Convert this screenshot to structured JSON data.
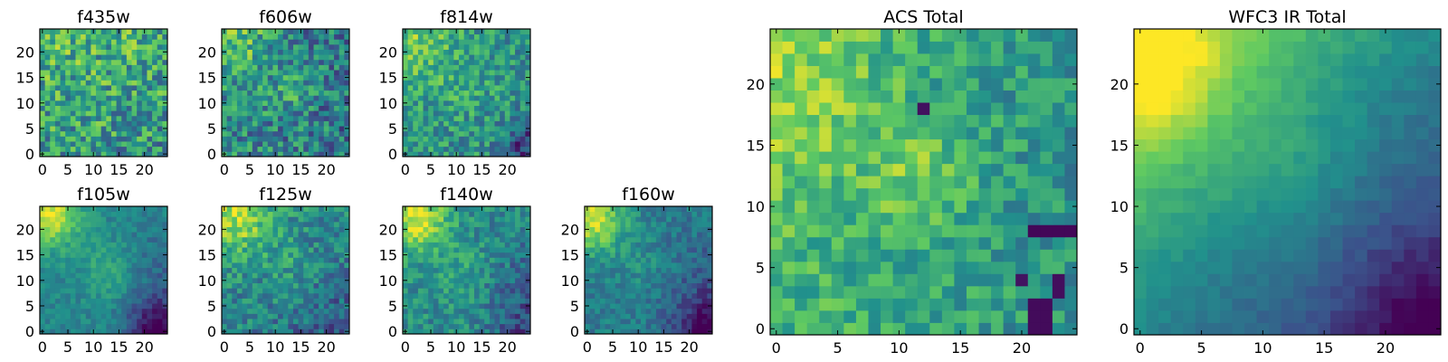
{
  "chart_data": [
    {
      "type": "heatmap",
      "title": "f435w",
      "grid_size": 25,
      "xlim": [
        -0.5,
        24.5
      ],
      "ylim": [
        -0.5,
        24.5
      ],
      "xticks": [
        0,
        5,
        10,
        15,
        20
      ],
      "yticks": [
        0,
        5,
        10,
        15,
        20
      ],
      "grid": false,
      "legend": "none",
      "colormap": "viridis",
      "pattern": "noisy, moderately uniform",
      "colormap_stops": [
        "#440154",
        "#3b528b",
        "#21918c",
        "#5ec962",
        "#fde725"
      ]
    },
    {
      "type": "heatmap",
      "title": "f606w",
      "grid_size": 25,
      "xlim": [
        -0.5,
        24.5
      ],
      "ylim": [
        -0.5,
        24.5
      ],
      "xticks": [
        0,
        5,
        10,
        15,
        20
      ],
      "yticks": [
        0,
        5,
        10,
        15,
        20
      ],
      "grid": false,
      "legend": "none",
      "colormap": "viridis",
      "pattern": "bright upper-left and center, noisy",
      "colormap_stops": [
        "#440154",
        "#3b528b",
        "#21918c",
        "#5ec962",
        "#fde725"
      ]
    },
    {
      "type": "heatmap",
      "title": "f814w",
      "grid_size": 25,
      "xlim": [
        -0.5,
        24.5
      ],
      "ylim": [
        -0.5,
        24.5
      ],
      "xticks": [
        0,
        5,
        10,
        15,
        20
      ],
      "yticks": [
        0,
        5,
        10,
        15,
        20
      ],
      "grid": false,
      "legend": "none",
      "colormap": "viridis",
      "pattern": "bright upper-left, dark lower-right corner",
      "colormap_stops": [
        "#440154",
        "#3b528b",
        "#21918c",
        "#5ec962",
        "#fde725"
      ]
    },
    {
      "type": "heatmap",
      "title": "f105w",
      "grid_size": 25,
      "xlim": [
        -0.5,
        24.5
      ],
      "ylim": [
        -0.5,
        24.5
      ],
      "xticks": [
        0,
        5,
        10,
        15,
        20
      ],
      "yticks": [
        0,
        5,
        10,
        15,
        20
      ],
      "grid": false,
      "legend": "none",
      "colormap": "viridis",
      "pattern": "yellow upper-left, dark bottom-right",
      "colormap_stops": [
        "#440154",
        "#3b528b",
        "#21918c",
        "#5ec962",
        "#fde725"
      ]
    },
    {
      "type": "heatmap",
      "title": "f125w",
      "grid_size": 25,
      "xlim": [
        -0.5,
        24.5
      ],
      "ylim": [
        -0.5,
        24.5
      ],
      "xticks": [
        0,
        5,
        10,
        15,
        20
      ],
      "yticks": [
        0,
        5,
        10,
        15,
        20
      ],
      "grid": false,
      "legend": "none",
      "colormap": "viridis",
      "pattern": "yellow upper-left, noisy",
      "colormap_stops": [
        "#440154",
        "#3b528b",
        "#21918c",
        "#5ec962",
        "#fde725"
      ]
    },
    {
      "type": "heatmap",
      "title": "f140w",
      "grid_size": 25,
      "xlim": [
        -0.5,
        24.5
      ],
      "ylim": [
        -0.5,
        24.5
      ],
      "xticks": [
        0,
        5,
        10,
        15,
        20
      ],
      "yticks": [
        0,
        5,
        10,
        15,
        20
      ],
      "grid": false,
      "legend": "none",
      "colormap": "viridis",
      "pattern": "yellow upper-left, dark bottom-right",
      "colormap_stops": [
        "#440154",
        "#3b528b",
        "#21918c",
        "#5ec962",
        "#fde725"
      ]
    },
    {
      "type": "heatmap",
      "title": "f160w",
      "grid_size": 25,
      "xlim": [
        -0.5,
        24.5
      ],
      "ylim": [
        -0.5,
        24.5
      ],
      "xticks": [
        0,
        5,
        10,
        15,
        20
      ],
      "yticks": [
        0,
        5,
        10,
        15,
        20
      ],
      "grid": false,
      "legend": "none",
      "colormap": "viridis",
      "pattern": "yellow upper-left, dark bottom-right",
      "colormap_stops": [
        "#440154",
        "#3b528b",
        "#21918c",
        "#5ec962",
        "#fde725"
      ]
    },
    {
      "type": "heatmap",
      "title": "ACS Total",
      "grid_size": 25,
      "xlim": [
        -0.5,
        24.5
      ],
      "ylim": [
        -0.5,
        24.5
      ],
      "xticks": [
        0,
        5,
        10,
        15,
        20
      ],
      "yticks": [
        0,
        5,
        10,
        15,
        20
      ],
      "grid": false,
      "legend": "none",
      "colormap": "viridis",
      "pattern": "bright left and center, dark blocks lower-right",
      "colormap_stops": [
        "#440154",
        "#3b528b",
        "#21918c",
        "#5ec962",
        "#fde725"
      ]
    },
    {
      "type": "heatmap",
      "title": "WFC3 IR Total",
      "grid_size": 25,
      "xlim": [
        -0.5,
        24.5
      ],
      "ylim": [
        -0.5,
        24.5
      ],
      "xticks": [
        0,
        5,
        10,
        15,
        20
      ],
      "yticks": [
        0,
        5,
        10,
        15,
        20
      ],
      "grid": false,
      "legend": "none",
      "colormap": "viridis",
      "pattern": "smooth gradient, yellow upper-left to purple lower-right",
      "colormap_stops": [
        "#440154",
        "#3b528b",
        "#21918c",
        "#5ec962",
        "#fde725"
      ]
    }
  ]
}
